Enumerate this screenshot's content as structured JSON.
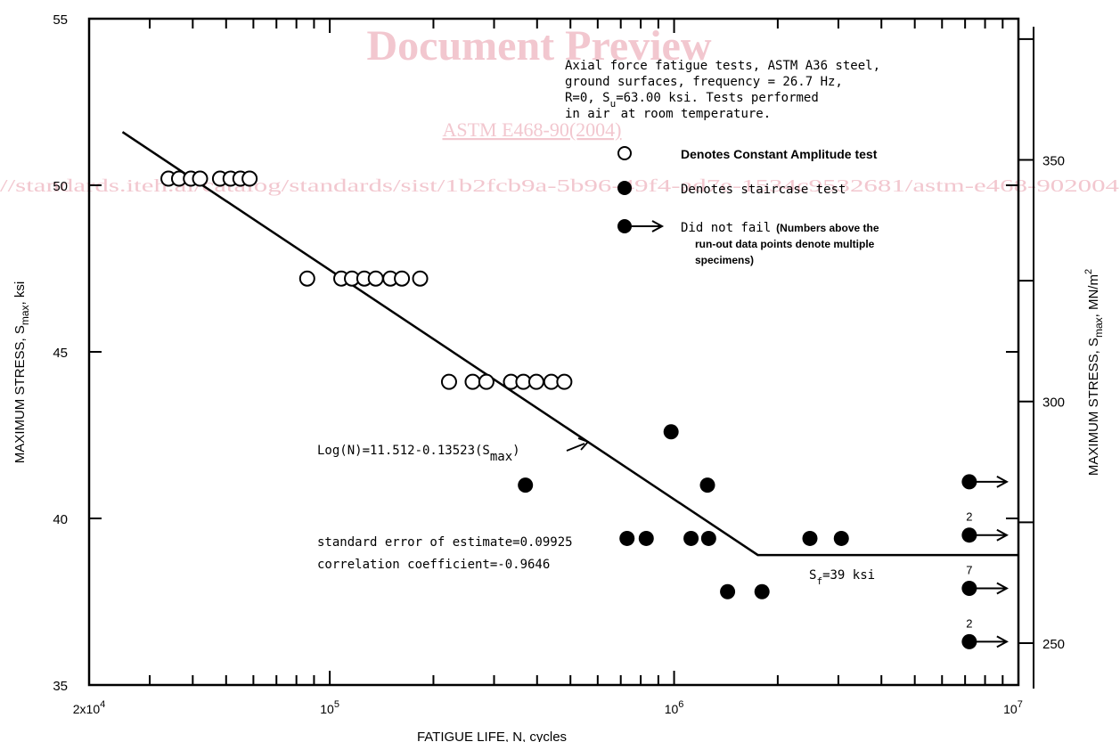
{
  "watermark": {
    "line1": "Document Preview",
    "line2": "ASTM E468-90(2004)",
    "line3": "//standards.iteh.ai/catalog/standards/sist/1b2fcb9a-5b96-49f4-ad7e-1534c9532681/astm-e468-902004"
  },
  "chart_data": {
    "type": "scatter",
    "xscale": "log",
    "xlim": [
      20000,
      10000000
    ],
    "ylim": [
      35,
      55
    ],
    "xlabel": "FATIGUE LIFE, N, cycles",
    "ylabel": "MAXIMUM STRESS, S",
    "ylabel_sub": "max",
    "ylabel_unit": ", ksi",
    "y2label": "MAXIMUM STRESS, S",
    "y2label_sub": "max",
    "y2label_unit": ", MN/m",
    "y2label_sup": "2",
    "x_ticks": [
      {
        "value": 20000,
        "label": "2x10",
        "sup": "4"
      },
      {
        "value": 100000,
        "label": "10",
        "sup": "5"
      },
      {
        "value": 1000000,
        "label": "10",
        "sup": "6"
      },
      {
        "value": 10000000,
        "label": "10",
        "sup": "7"
      }
    ],
    "y_ticks": [
      35,
      40,
      45,
      50,
      55
    ],
    "y2_ticks": [
      {
        "value": 250,
        "ksi": 36.26
      },
      {
        "value": 300,
        "ksi": 43.51
      },
      {
        "value": 350,
        "ksi": 50.76
      }
    ],
    "notes": {
      "line1": "Axial force fatigue tests, ASTM A36 steel,",
      "line2": "ground surfaces, frequency = 26.7 Hz,",
      "line3a": "R=0, S",
      "line3sub": "u",
      "line3b": "=63.00 ksi.  Tests performed",
      "line4a": "in air",
      "line4b": "at room temperature."
    },
    "legend": {
      "constant": "Denotes Constant Amplitude test",
      "staircase": "Denotes staircase test",
      "runout1": "Did not fail",
      "runout2": "(Numbers above the",
      "runout3": "run-out data points denote multiple",
      "runout4": "specimens)"
    },
    "equation": {
      "text": "Log(N)=11.512-0.13523(S",
      "sub": "max",
      "close": ")"
    },
    "stats": {
      "std_error": "standard error of estimate=0.09925",
      "correlation": "correlation coefficient=-0.9646"
    },
    "fatigue_limit": {
      "prefix": "S",
      "sub": "f",
      "suffix": "=39 ksi",
      "value": 39
    },
    "fit_line": [
      [
        25000,
        51.6
      ],
      [
        1750000,
        38.9
      ],
      [
        10000000,
        38.9
      ]
    ],
    "series": [
      {
        "name": "Denotes Constant Amplitude test",
        "marker": "open-circle",
        "points": [
          [
            34000,
            50.2
          ],
          [
            36500,
            50.2
          ],
          [
            39500,
            50.2
          ],
          [
            42000,
            50.2
          ],
          [
            48000,
            50.2
          ],
          [
            51500,
            50.2
          ],
          [
            55000,
            50.2
          ],
          [
            58500,
            50.2
          ],
          [
            86000,
            47.2
          ],
          [
            108000,
            47.2
          ],
          [
            116000,
            47.2
          ],
          [
            126000,
            47.2
          ],
          [
            136000,
            47.2
          ],
          [
            150000,
            47.2
          ],
          [
            162000,
            47.2
          ],
          [
            183000,
            47.2
          ],
          [
            222000,
            44.1
          ],
          [
            260000,
            44.1
          ],
          [
            285000,
            44.1
          ],
          [
            336000,
            44.1
          ],
          [
            365000,
            44.1
          ],
          [
            398000,
            44.1
          ],
          [
            440000,
            44.1
          ],
          [
            480000,
            44.1
          ]
        ]
      },
      {
        "name": "Denotes staircase test",
        "marker": "filled-circle",
        "points": [
          [
            370000,
            41.0
          ],
          [
            730000,
            39.4
          ],
          [
            830000,
            39.4
          ],
          [
            980000,
            42.6
          ],
          [
            1120000,
            39.4
          ],
          [
            1250000,
            41.0
          ],
          [
            1260000,
            39.4
          ],
          [
            1430000,
            37.8
          ],
          [
            1800000,
            37.8
          ],
          [
            2480000,
            39.4
          ],
          [
            3060000,
            39.4
          ]
        ]
      },
      {
        "name": "Did not fail",
        "marker": "filled-circle-arrow",
        "points": [
          {
            "x": 7200000,
            "y": 41.1,
            "count": ""
          },
          {
            "x": 7200000,
            "y": 39.5,
            "count": "2"
          },
          {
            "x": 7200000,
            "y": 37.9,
            "count": "7"
          },
          {
            "x": 7200000,
            "y": 36.3,
            "count": "2"
          }
        ]
      }
    ]
  }
}
